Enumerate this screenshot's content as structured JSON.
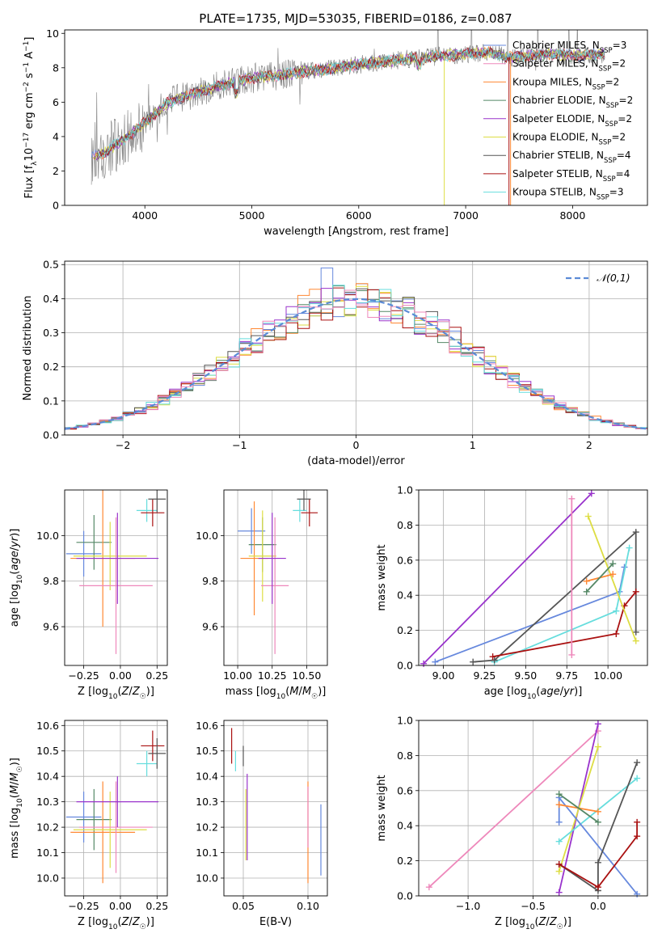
{
  "figure": {
    "title": "PLATE=1735, MJD=53035, FIBERID=0186, z=0.087",
    "colors": [
      "#6688dd",
      "#ff8833",
      "#558866",
      "#9933cc",
      "#dddd44",
      "#555555",
      "#aa1111",
      "#66dddd",
      "#ee88bb",
      "#808080"
    ]
  },
  "chart_data": [
    {
      "id": "spectrum",
      "type": "line",
      "xlabel": "wavelength [Angstrom, rest frame]",
      "ylabel": "Flux [f_λ10^-17 erg cm^-2 s^-1 A^-1]",
      "xlim": [
        3250,
        8700
      ],
      "ylim": [
        0,
        10.2
      ],
      "xticks": [
        4000,
        5000,
        6000,
        7000,
        8000
      ],
      "yticks": [
        0,
        2,
        4,
        6,
        8,
        10
      ],
      "legend_position": "right",
      "series": [
        {
          "name": "Chabrier MILES, N_SSP=3",
          "color": "#6688dd"
        },
        {
          "name": "Salpeter MILES, N_SSP=2",
          "color": "#ee88bb"
        },
        {
          "name": "Kroupa MILES, N_SSP=2",
          "color": "#ff8833"
        },
        {
          "name": "Chabrier ELODIE, N_SSP=2",
          "color": "#558866"
        },
        {
          "name": "Salpeter ELODIE, N_SSP=2",
          "color": "#9933cc"
        },
        {
          "name": "Kroupa ELODIE, N_SSP=2",
          "color": "#dddd44"
        },
        {
          "name": "Chabrier STELIB, N_SSP=4",
          "color": "#555555"
        },
        {
          "name": "Salpeter STELIB, N_SSP=4",
          "color": "#aa1111"
        },
        {
          "name": "Kroupa STELIB, N_SSP=3",
          "color": "#66dddd"
        }
      ],
      "continuum": {
        "x": [
          3500,
          3600,
          3800,
          4000,
          4200,
          4500,
          4800,
          5000,
          5200,
          5500,
          5800,
          6000,
          6300,
          6600,
          7000,
          7200,
          7400,
          7600,
          7800,
          8000,
          8300
        ],
        "y": [
          2.8,
          3.0,
          3.8,
          4.8,
          5.9,
          6.6,
          7.1,
          7.4,
          7.5,
          7.8,
          8.0,
          8.2,
          8.4,
          8.6,
          8.8,
          8.9,
          8.6,
          8.7,
          8.8,
          8.7,
          8.8
        ]
      }
    },
    {
      "id": "residuals",
      "type": "bar",
      "xlabel": "(data-model)/error",
      "ylabel": "Normed distribution",
      "xlim": [
        -2.5,
        2.5
      ],
      "ylim": [
        0,
        0.51
      ],
      "xticks": [
        -2,
        -1,
        0,
        1,
        2
      ],
      "yticks": [
        0.0,
        0.1,
        0.2,
        0.3,
        0.4,
        0.5
      ],
      "legend": "𝒩(0,1)",
      "legend_position": "top-right",
      "grid": true
    },
    {
      "id": "age_vs_Z",
      "type": "scatter",
      "xlabel": "Z [log10(Z/Z☉)]",
      "ylabel": "age [log10(age/yr)]",
      "xlim": [
        -0.38,
        0.32
      ],
      "ylim": [
        9.43,
        10.2
      ],
      "xticks": [
        -0.25,
        0.0,
        0.25
      ],
      "yticks": [
        9.6,
        9.8,
        10.0
      ],
      "grid": true,
      "points": [
        {
          "x": -0.25,
          "y": 9.92,
          "xerr": 0.12,
          "yerr": 0.1,
          "color": "#6688dd"
        },
        {
          "x": -0.18,
          "y": 9.97,
          "xerr": 0.12,
          "yerr": 0.12,
          "color": "#558866"
        },
        {
          "x": -0.12,
          "y": 9.9,
          "xerr": 0.22,
          "yerr": 0.3,
          "color": "#ff8833"
        },
        {
          "x": -0.07,
          "y": 9.91,
          "xerr": 0.25,
          "yerr": 0.15,
          "color": "#dddd44"
        },
        {
          "x": -0.03,
          "y": 9.78,
          "xerr": 0.25,
          "yerr": 0.3,
          "color": "#ee88bb"
        },
        {
          "x": -0.02,
          "y": 9.9,
          "xerr": 0.28,
          "yerr": 0.2,
          "color": "#9933cc"
        },
        {
          "x": 0.18,
          "y": 10.11,
          "xerr": 0.07,
          "yerr": 0.05,
          "color": "#66dddd"
        },
        {
          "x": 0.22,
          "y": 10.1,
          "xerr": 0.08,
          "yerr": 0.06,
          "color": "#aa1111"
        },
        {
          "x": 0.25,
          "y": 10.16,
          "xerr": 0.06,
          "yerr": 0.06,
          "color": "#555555"
        }
      ]
    },
    {
      "id": "age_vs_mass",
      "type": "scatter",
      "xlabel": "mass [log10(M/M☉)]",
      "ylabel": "",
      "xlim": [
        9.9,
        10.65
      ],
      "ylim": [
        9.43,
        10.2
      ],
      "xticks": [
        10.0,
        10.25,
        10.5
      ],
      "yticks": [
        9.6,
        9.8,
        10.0
      ],
      "grid": true,
      "points": [
        {
          "x": 10.1,
          "y": 10.02,
          "xerr": 0.1,
          "yerr": 0.1,
          "color": "#6688dd"
        },
        {
          "x": 10.18,
          "y": 9.96,
          "xerr": 0.1,
          "yerr": 0.12,
          "color": "#558866"
        },
        {
          "x": 10.12,
          "y": 9.9,
          "xerr": 0.1,
          "yerr": 0.25,
          "color": "#ff8833"
        },
        {
          "x": 10.18,
          "y": 9.91,
          "xerr": 0.1,
          "yerr": 0.2,
          "color": "#dddd44"
        },
        {
          "x": 10.27,
          "y": 9.78,
          "xerr": 0.1,
          "yerr": 0.3,
          "color": "#ee88bb"
        },
        {
          "x": 10.25,
          "y": 9.9,
          "xerr": 0.1,
          "yerr": 0.2,
          "color": "#9933cc"
        },
        {
          "x": 10.45,
          "y": 10.11,
          "xerr": 0.05,
          "yerr": 0.05,
          "color": "#66dddd"
        },
        {
          "x": 10.52,
          "y": 10.1,
          "xerr": 0.06,
          "yerr": 0.06,
          "color": "#aa1111"
        },
        {
          "x": 10.48,
          "y": 10.16,
          "xerr": 0.05,
          "yerr": 0.05,
          "color": "#555555"
        }
      ]
    },
    {
      "id": "weight_vs_age",
      "type": "line",
      "xlabel": "age [log10(age/yr)]",
      "ylabel": "mass weight",
      "xlim": [
        8.85,
        10.24
      ],
      "ylim": [
        0,
        1
      ],
      "xticks": [
        9.0,
        9.25,
        9.5,
        9.75,
        10.0
      ],
      "yticks": [
        0.0,
        0.2,
        0.4,
        0.6,
        0.8,
        1.0
      ],
      "grid": true,
      "series": [
        {
          "color": "#9933cc",
          "x": [
            8.88,
            9.9
          ],
          "y": [
            0.01,
            0.98
          ]
        },
        {
          "color": "#6688dd",
          "x": [
            8.95,
            10.07,
            10.1
          ],
          "y": [
            0.02,
            0.42,
            0.56
          ]
        },
        {
          "color": "#66dddd",
          "x": [
            9.31,
            10.05,
            10.13
          ],
          "y": [
            0.02,
            0.31,
            0.67
          ]
        },
        {
          "color": "#555555",
          "x": [
            9.18,
            9.31,
            10.17,
            10.17
          ],
          "y": [
            0.02,
            0.03,
            0.76,
            0.19
          ]
        },
        {
          "color": "#aa1111",
          "x": [
            9.3,
            10.05,
            10.1,
            10.17
          ],
          "y": [
            0.05,
            0.18,
            0.34,
            0.42
          ]
        },
        {
          "color": "#dddd44",
          "x": [
            9.88,
            10.17
          ],
          "y": [
            0.85,
            0.14
          ]
        },
        {
          "color": "#ff8833",
          "x": [
            9.87,
            10.03
          ],
          "y": [
            0.48,
            0.52
          ]
        },
        {
          "color": "#558866",
          "x": [
            9.87,
            10.03
          ],
          "y": [
            0.42,
            0.58
          ]
        },
        {
          "color": "#ee88bb",
          "x": [
            9.78,
            9.78
          ],
          "y": [
            0.06,
            0.95
          ]
        }
      ]
    },
    {
      "id": "mass_vs_Z",
      "type": "scatter",
      "xlabel": "Z [log10(Z/Z☉)]",
      "ylabel": "mass [log10(M/M☉)]",
      "xlim": [
        -0.38,
        0.32
      ],
      "ylim": [
        9.93,
        10.62
      ],
      "xticks": [
        -0.25,
        0.0,
        0.25
      ],
      "yticks": [
        10.0,
        10.1,
        10.2,
        10.3,
        10.4,
        10.5,
        10.6
      ],
      "grid": true,
      "points": [
        {
          "x": -0.25,
          "y": 10.24,
          "xerr": 0.12,
          "yerr": 0.1,
          "color": "#6688dd"
        },
        {
          "x": -0.18,
          "y": 10.23,
          "xerr": 0.12,
          "yerr": 0.12,
          "color": "#558866"
        },
        {
          "x": -0.12,
          "y": 10.18,
          "xerr": 0.22,
          "yerr": 0.2,
          "color": "#ff8833"
        },
        {
          "x": -0.07,
          "y": 10.19,
          "xerr": 0.25,
          "yerr": 0.15,
          "color": "#dddd44"
        },
        {
          "x": -0.03,
          "y": 10.2,
          "xerr": 0.25,
          "yerr": 0.18,
          "color": "#ee88bb"
        },
        {
          "x": -0.02,
          "y": 10.3,
          "xerr": 0.28,
          "yerr": 0.1,
          "color": "#9933cc"
        },
        {
          "x": 0.18,
          "y": 10.45,
          "xerr": 0.07,
          "yerr": 0.05,
          "color": "#66dddd"
        },
        {
          "x": 0.22,
          "y": 10.52,
          "xerr": 0.08,
          "yerr": 0.06,
          "color": "#aa1111"
        },
        {
          "x": 0.25,
          "y": 10.49,
          "xerr": 0.06,
          "yerr": 0.06,
          "color": "#555555"
        }
      ]
    },
    {
      "id": "mass_vs_EBV",
      "type": "scatter",
      "xlabel": "E(B-V)",
      "ylabel": "",
      "xlim": [
        0.035,
        0.115
      ],
      "ylim": [
        9.93,
        10.62
      ],
      "xticks": [
        0.05,
        0.1
      ],
      "yticks": [
        10.0,
        10.1,
        10.2,
        10.3,
        10.4,
        10.5,
        10.6
      ],
      "grid": true,
      "points": [
        {
          "x": 0.041,
          "y": 10.52,
          "yerr": 0.07,
          "color": "#aa1111"
        },
        {
          "x": 0.044,
          "y": 10.46,
          "yerr": 0.04,
          "color": "#66dddd"
        },
        {
          "x": 0.05,
          "y": 10.48,
          "yerr": 0.04,
          "color": "#555555"
        },
        {
          "x": 0.052,
          "y": 10.21,
          "yerr": 0.14,
          "color": "#dddd44"
        },
        {
          "x": 0.053,
          "y": 10.24,
          "yerr": 0.17,
          "color": "#9933cc"
        },
        {
          "x": 0.1,
          "y": 10.18,
          "yerr": 0.2,
          "color": "#ff8833"
        },
        {
          "x": 0.1,
          "y": 10.24,
          "yerr": 0.12,
          "color": "#ee88bb"
        },
        {
          "x": 0.11,
          "y": 10.15,
          "yerr": 0.14,
          "color": "#6688dd"
        }
      ]
    },
    {
      "id": "weight_vs_Z",
      "type": "line",
      "xlabel": "Z [log10(Z/Z☉)]",
      "ylabel": "mass weight",
      "xlim": [
        -1.38,
        0.38
      ],
      "ylim": [
        0,
        1
      ],
      "xticks": [
        -1.0,
        -0.5,
        0.0
      ],
      "yticks": [
        0.0,
        0.2,
        0.4,
        0.6,
        0.8,
        1.0
      ],
      "grid": true,
      "series": [
        {
          "color": "#ee88bb",
          "x": [
            -1.3,
            0.0
          ],
          "y": [
            0.05,
            0.94
          ]
        },
        {
          "color": "#9933cc",
          "x": [
            -0.3,
            0.0
          ],
          "y": [
            0.02,
            0.98
          ]
        },
        {
          "color": "#dddd44",
          "x": [
            -0.3,
            0.0
          ],
          "y": [
            0.14,
            0.85
          ]
        },
        {
          "color": "#66dddd",
          "x": [
            -0.3,
            0.3
          ],
          "y": [
            0.31,
            0.67
          ]
        },
        {
          "color": "#6688dd",
          "x": [
            -0.3,
            -0.3,
            0.3
          ],
          "y": [
            0.42,
            0.56,
            0.01
          ]
        },
        {
          "color": "#ff8833",
          "x": [
            -0.3,
            0.0
          ],
          "y": [
            0.52,
            0.48
          ]
        },
        {
          "color": "#558866",
          "x": [
            -0.3,
            0.0
          ],
          "y": [
            0.58,
            0.42
          ]
        },
        {
          "color": "#555555",
          "x": [
            -0.3,
            0.0,
            0.0,
            0.3
          ],
          "y": [
            0.18,
            0.03,
            0.19,
            0.76
          ]
        },
        {
          "color": "#aa1111",
          "x": [
            -0.3,
            0.0,
            0.3,
            0.3
          ],
          "y": [
            0.18,
            0.05,
            0.34,
            0.42
          ]
        }
      ]
    }
  ]
}
